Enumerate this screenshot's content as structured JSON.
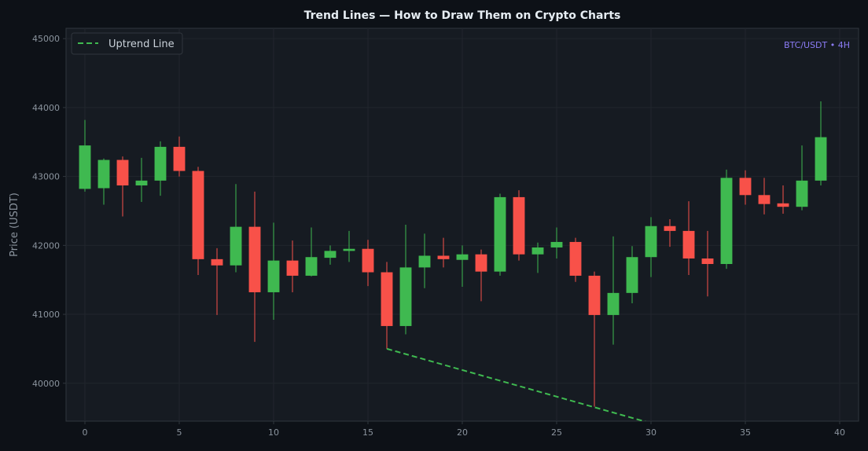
{
  "chart_data": {
    "type": "candlestick",
    "title": "Trend Lines — How to Draw Them on Crypto Charts",
    "xlabel": "",
    "ylabel": "Price (USDT)",
    "pair_label": "BTC/USDT • 4H",
    "xlim": [
      -1,
      41
    ],
    "ylim": [
      39450,
      45150
    ],
    "x_ticks": [
      0,
      5,
      10,
      15,
      20,
      25,
      30,
      35,
      40
    ],
    "y_ticks": [
      40000,
      41000,
      42000,
      43000,
      44000,
      45000
    ],
    "grid": true,
    "legend_position": "top-left",
    "colors": {
      "background": "#0d1117",
      "plot_background": "#161b22",
      "up": "#3fb950",
      "down": "#f85149",
      "trendline": "#3fb950",
      "grid": "#21262d",
      "axis": "#30363d",
      "tick_text": "#8b949e",
      "title_text": "#e6edf3",
      "pair_label": "#8b7cf6",
      "legend_bg": "#161b22",
      "legend_border": "#30363d"
    },
    "candles": [
      {
        "x": 0,
        "open": 42820,
        "high": 43820,
        "low": 42780,
        "close": 43450
      },
      {
        "x": 1,
        "open": 42830,
        "high": 43260,
        "low": 42590,
        "close": 43240
      },
      {
        "x": 2,
        "open": 43240,
        "high": 43290,
        "low": 42420,
        "close": 42870
      },
      {
        "x": 3,
        "open": 42870,
        "high": 43270,
        "low": 42630,
        "close": 42940
      },
      {
        "x": 4,
        "open": 42940,
        "high": 43510,
        "low": 42720,
        "close": 43430
      },
      {
        "x": 5,
        "open": 43430,
        "high": 43580,
        "low": 43000,
        "close": 43080
      },
      {
        "x": 6,
        "open": 43080,
        "high": 43140,
        "low": 41570,
        "close": 41800
      },
      {
        "x": 7,
        "open": 41800,
        "high": 41960,
        "low": 40990,
        "close": 41710
      },
      {
        "x": 8,
        "open": 41710,
        "high": 42890,
        "low": 41610,
        "close": 42270
      },
      {
        "x": 9,
        "open": 42270,
        "high": 42780,
        "low": 40600,
        "close": 41320
      },
      {
        "x": 10,
        "open": 41320,
        "high": 42330,
        "low": 40920,
        "close": 41780
      },
      {
        "x": 11,
        "open": 41780,
        "high": 42070,
        "low": 41320,
        "close": 41560
      },
      {
        "x": 12,
        "open": 41560,
        "high": 42260,
        "low": 41550,
        "close": 41830
      },
      {
        "x": 13,
        "open": 41820,
        "high": 42000,
        "low": 41720,
        "close": 41920
      },
      {
        "x": 14,
        "open": 41920,
        "high": 42210,
        "low": 41760,
        "close": 41950
      },
      {
        "x": 15,
        "open": 41950,
        "high": 42080,
        "low": 41410,
        "close": 41610
      },
      {
        "x": 16,
        "open": 41610,
        "high": 41760,
        "low": 40500,
        "close": 40830
      },
      {
        "x": 17,
        "open": 40830,
        "high": 42300,
        "low": 40710,
        "close": 41680
      },
      {
        "x": 18,
        "open": 41680,
        "high": 42170,
        "low": 41380,
        "close": 41850
      },
      {
        "x": 19,
        "open": 41850,
        "high": 42110,
        "low": 41680,
        "close": 41800
      },
      {
        "x": 20,
        "open": 41790,
        "high": 42000,
        "low": 41400,
        "close": 41870
      },
      {
        "x": 21,
        "open": 41870,
        "high": 41940,
        "low": 41190,
        "close": 41620
      },
      {
        "x": 22,
        "open": 41620,
        "high": 42750,
        "low": 41560,
        "close": 42700
      },
      {
        "x": 23,
        "open": 42700,
        "high": 42800,
        "low": 41780,
        "close": 41870
      },
      {
        "x": 24,
        "open": 41870,
        "high": 42040,
        "low": 41600,
        "close": 41970
      },
      {
        "x": 25,
        "open": 41970,
        "high": 42260,
        "low": 41810,
        "close": 42050
      },
      {
        "x": 26,
        "open": 42050,
        "high": 42110,
        "low": 41470,
        "close": 41560
      },
      {
        "x": 27,
        "open": 41560,
        "high": 41620,
        "low": 39660,
        "close": 40990
      },
      {
        "x": 28,
        "open": 40990,
        "high": 42130,
        "low": 40560,
        "close": 41310
      },
      {
        "x": 29,
        "open": 41310,
        "high": 41990,
        "low": 41160,
        "close": 41830
      },
      {
        "x": 30,
        "open": 41830,
        "high": 42410,
        "low": 41540,
        "close": 42280
      },
      {
        "x": 31,
        "open": 42280,
        "high": 42380,
        "low": 41980,
        "close": 42210
      },
      {
        "x": 32,
        "open": 42210,
        "high": 42640,
        "low": 41570,
        "close": 41810
      },
      {
        "x": 33,
        "open": 41810,
        "high": 42210,
        "low": 41260,
        "close": 41730
      },
      {
        "x": 34,
        "open": 41730,
        "high": 43100,
        "low": 41660,
        "close": 42980
      },
      {
        "x": 35,
        "open": 42980,
        "high": 43090,
        "low": 42590,
        "close": 42730
      },
      {
        "x": 36,
        "open": 42730,
        "high": 42980,
        "low": 42450,
        "close": 42600
      },
      {
        "x": 37,
        "open": 42610,
        "high": 42870,
        "low": 42460,
        "close": 42560
      },
      {
        "x": 38,
        "open": 42560,
        "high": 43450,
        "low": 42510,
        "close": 42940
      },
      {
        "x": 39,
        "open": 42940,
        "high": 44090,
        "low": 42870,
        "close": 43570
      }
    ],
    "trendline": {
      "name": "Uptrend Line",
      "style": "dashed",
      "points": [
        {
          "x": 16,
          "y": 40500
        },
        {
          "x": 30,
          "y": 39420
        }
      ]
    }
  }
}
